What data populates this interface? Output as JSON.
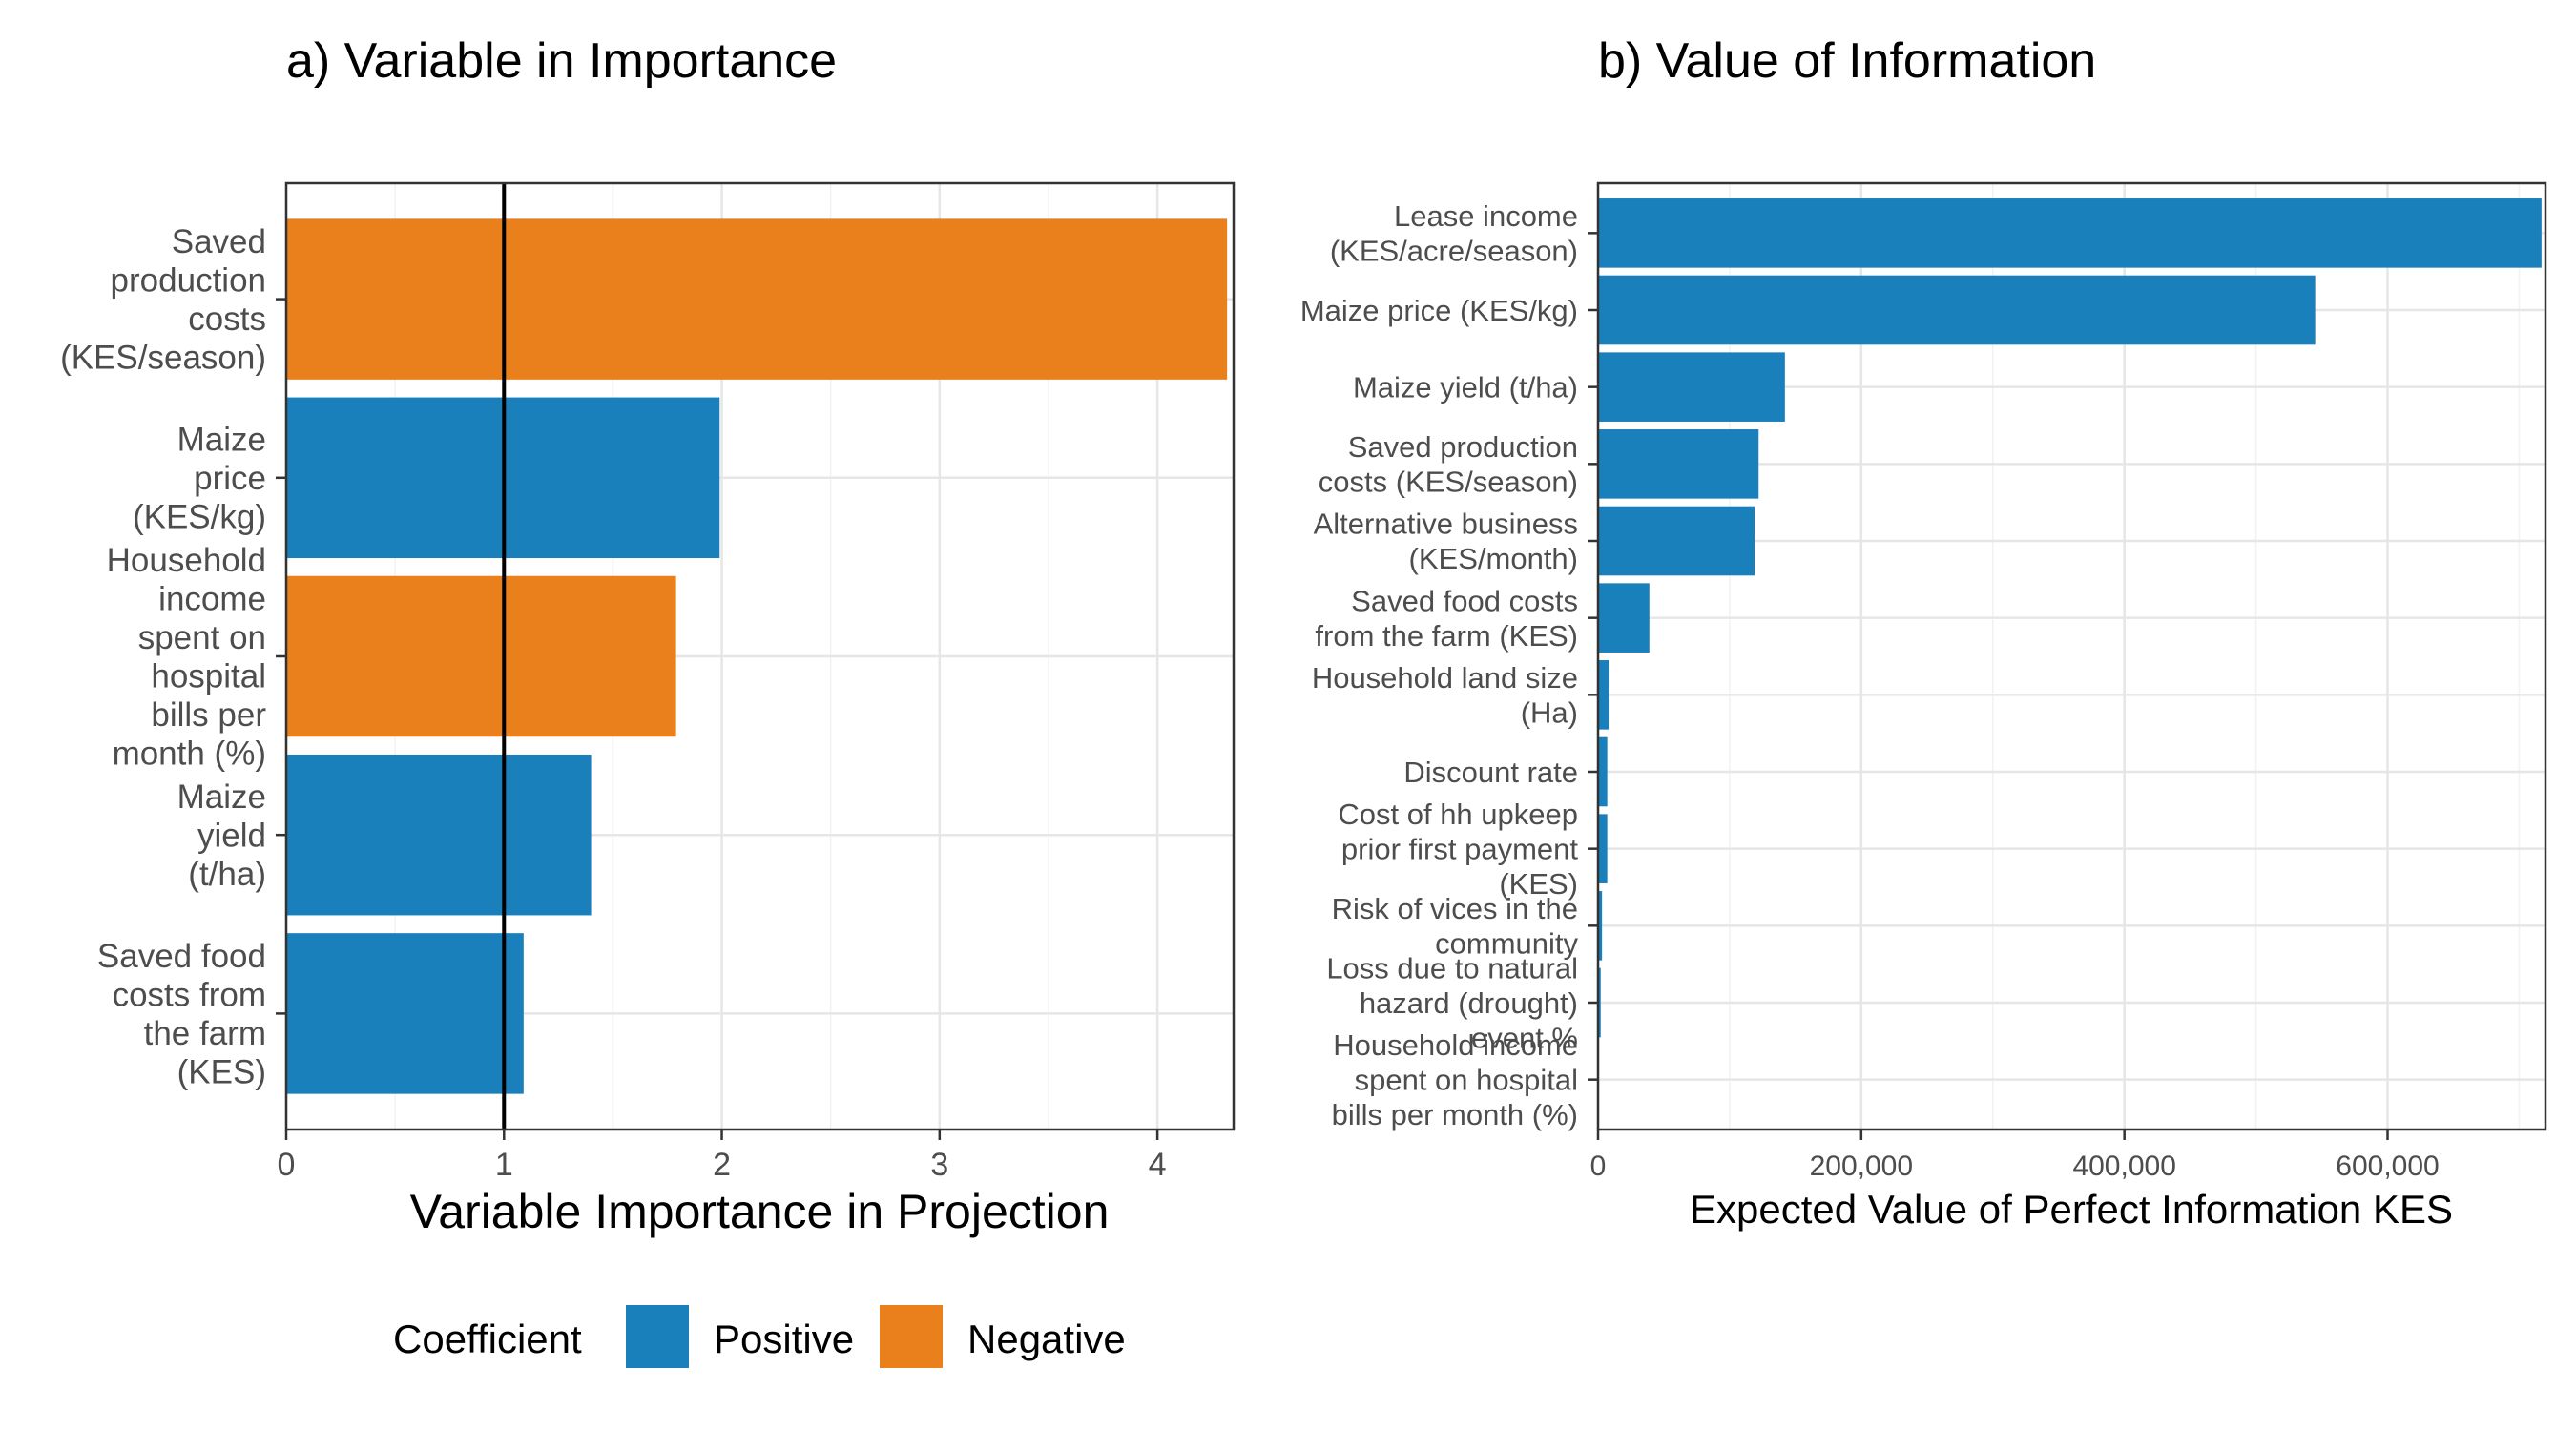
{
  "chart_data": [
    {
      "type": "bar",
      "orientation": "horizontal",
      "title": "a) Variable in Importance",
      "xlabel": "Variable Importance in Projection",
      "ylabel": "",
      "xlim": [
        0,
        4.35
      ],
      "x_ticks": [
        "0",
        "1",
        "2",
        "3",
        "4"
      ],
      "x_tick_values": [
        0,
        1,
        2,
        3,
        4
      ],
      "reference_line": 1,
      "grid": true,
      "categories": [
        [
          "Saved",
          "production",
          "costs",
          "(KES/season)"
        ],
        [
          "Maize",
          "price",
          "(KES/kg)"
        ],
        [
          "Household",
          "income",
          "spent on",
          "hospital",
          "bills per",
          "month (%)"
        ],
        [
          "Maize",
          "yield",
          "(t/ha)"
        ],
        [
          "Saved food",
          "costs from",
          "the farm",
          "(KES)"
        ]
      ],
      "values": [
        4.32,
        1.99,
        1.79,
        1.4,
        1.09
      ],
      "coefficient": [
        "Negative",
        "Positive",
        "Negative",
        "Positive",
        "Positive"
      ],
      "legend": {
        "title": "Coefficient",
        "position": "bottom",
        "entries": [
          {
            "label": "Positive",
            "color": "#1a80bb"
          },
          {
            "label": "Negative",
            "color": "#ea801c"
          }
        ]
      }
    },
    {
      "type": "bar",
      "orientation": "horizontal",
      "title": "b) Value of Information",
      "xlabel": "Expected Value of Perfect Information KES",
      "ylabel": "",
      "xlim": [
        0,
        720000
      ],
      "x_ticks": [
        "0",
        "200,000",
        "400,000",
        "600,000"
      ],
      "x_tick_values": [
        0,
        200000,
        400000,
        600000
      ],
      "grid": true,
      "color": "#1a80bb",
      "categories": [
        [
          "Lease income",
          "(KES/acre/season)"
        ],
        [
          "Maize price (KES/kg)"
        ],
        [
          "Maize yield (t/ha)"
        ],
        [
          "Saved production",
          "costs (KES/season)"
        ],
        [
          "Alternative business",
          "(KES/month)"
        ],
        [
          "Saved food costs",
          "from the farm (KES)"
        ],
        [
          "Household land size",
          "(Ha)"
        ],
        [
          "Discount rate"
        ],
        [
          "Cost of hh upkeep",
          "prior first payment",
          "(KES)"
        ],
        [
          "Risk of vices in the",
          "community"
        ],
        [
          "Loss due to natural",
          "hazard (drought)",
          "event %"
        ],
        [
          "Household income",
          "spent on hospital",
          "bills per month (%)"
        ]
      ],
      "values": [
        717000,
        545000,
        142000,
        122000,
        119000,
        39000,
        8000,
        7000,
        7000,
        3000,
        2000,
        0
      ]
    }
  ]
}
